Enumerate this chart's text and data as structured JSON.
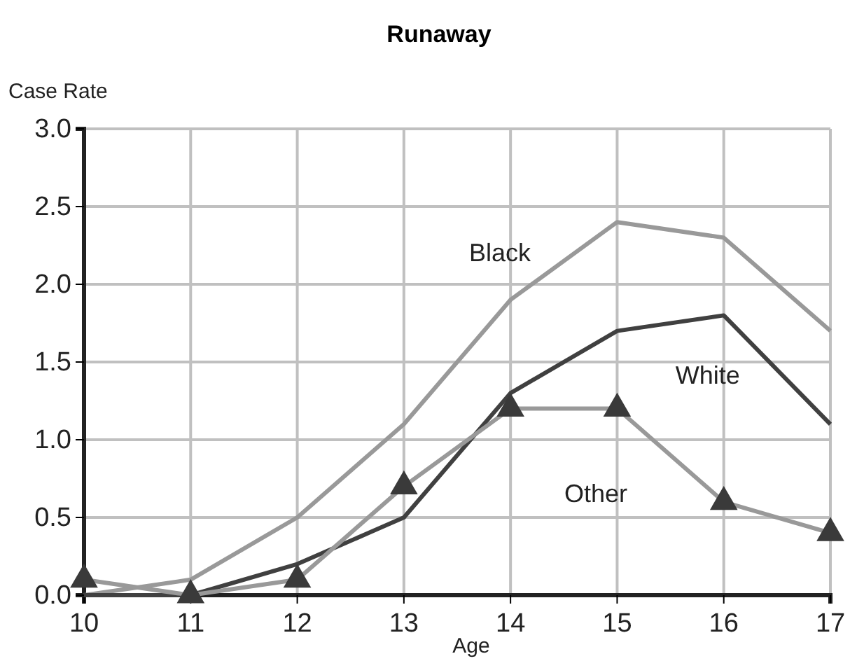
{
  "chart_data": {
    "type": "line",
    "title": "Runaway",
    "ylabel": "Case Rate",
    "xlabel": "Age",
    "x": [
      10,
      11,
      12,
      13,
      14,
      15,
      16,
      17
    ],
    "xlim": [
      10,
      17
    ],
    "xticks": [
      10,
      11,
      12,
      13,
      14,
      15,
      16,
      17
    ],
    "ylim": [
      0,
      3
    ],
    "yticks": [
      {
        "value": 0,
        "label": "0.0"
      },
      {
        "value": 0.5,
        "label": "0.5"
      },
      {
        "value": 1,
        "label": "1.0"
      },
      {
        "value": 1.5,
        "label": "1.5"
      },
      {
        "value": 2,
        "label": "2.0"
      },
      {
        "value": 2.5,
        "label": "2.5"
      },
      {
        "value": 3,
        "label": "3.0"
      }
    ],
    "grid": true,
    "series": [
      {
        "name": "Black",
        "color": "#999999",
        "marker": "none",
        "values": [
          0.0,
          0.1,
          0.5,
          1.1,
          1.9,
          2.4,
          2.3,
          1.7
        ]
      },
      {
        "name": "White",
        "color": "#404040",
        "marker": "none",
        "values": [
          0.0,
          0.0,
          0.2,
          0.5,
          1.3,
          1.7,
          1.8,
          1.1
        ]
      },
      {
        "name": "Other",
        "color": "#999999",
        "marker": "triangle",
        "values": [
          0.1,
          0.0,
          0.1,
          0.7,
          1.2,
          1.2,
          0.6,
          0.4
        ]
      }
    ]
  }
}
